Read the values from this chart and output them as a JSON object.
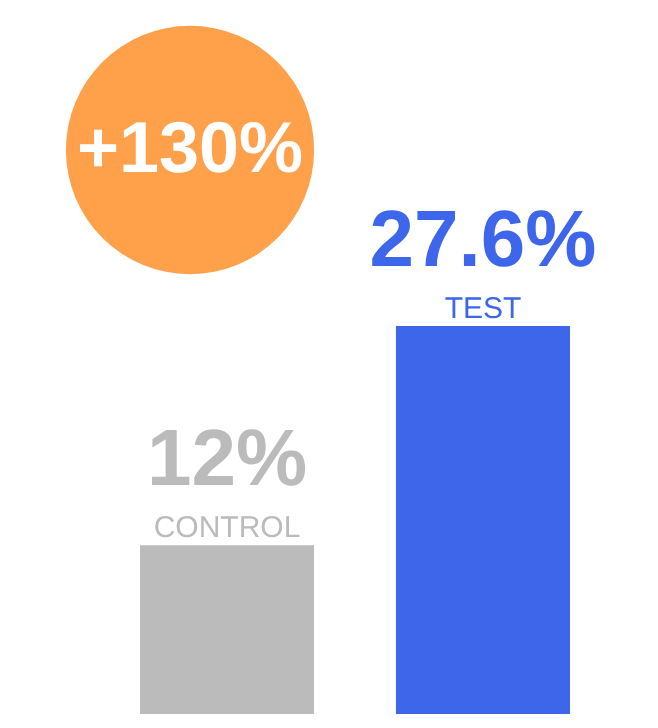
{
  "chart_data": {
    "type": "bar",
    "categories": [
      "CONTROL",
      "TEST"
    ],
    "values": [
      12,
      27.6
    ],
    "colors": [
      "#bbbbbb",
      "#3d66ea"
    ],
    "value_labels": [
      "12%",
      "27.6%"
    ],
    "annotations": [
      "+130%"
    ]
  }
}
